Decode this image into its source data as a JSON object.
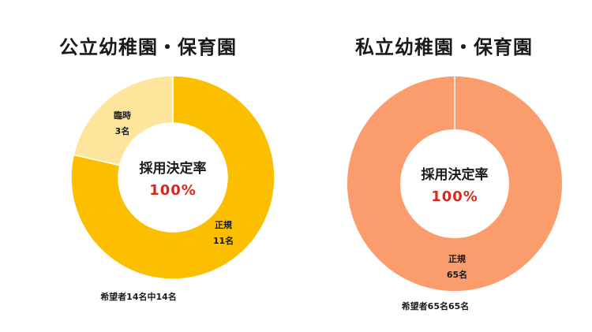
{
  "chart_data": [
    {
      "type": "pie",
      "title": "公立幼稚園・保育園",
      "center_label": "採用決定率",
      "center_value": "100%",
      "slices": [
        {
          "label": "正規",
          "value": 11,
          "value_label": "11名",
          "color": "#fbbf00"
        },
        {
          "label": "臨時",
          "value": 3,
          "value_label": "3名",
          "color": "#fde59b"
        }
      ],
      "footnote": "希望者14名中14名"
    },
    {
      "type": "pie",
      "title": "私立幼稚園・保育園",
      "center_label": "採用決定率",
      "center_value": "100%",
      "slices": [
        {
          "label": "正規",
          "value": 65,
          "value_label": "65名",
          "color": "#fa9c6b"
        }
      ],
      "footnote": "希望者65名65名"
    }
  ]
}
